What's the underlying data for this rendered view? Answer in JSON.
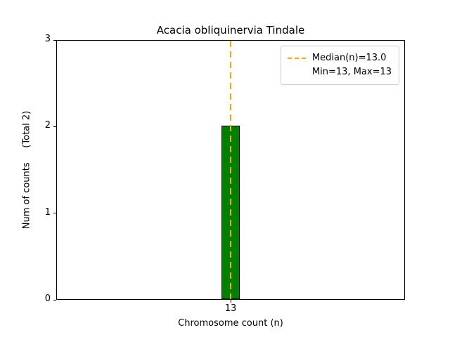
{
  "chart_data": {
    "type": "bar",
    "title": "Acacia obliquinervia Tindale",
    "xlabel": "Chromosome count (n)",
    "ylabel": "Num of counts     (Total 2)",
    "categories": [
      "13"
    ],
    "values": [
      2
    ],
    "ylim": [
      0,
      3
    ],
    "yticks": [
      0,
      1,
      2,
      3
    ],
    "grid": false,
    "bar_color": "#008000",
    "bar_edge_color": "#000000",
    "median_line": {
      "x": 13,
      "color": "#FFA500",
      "style": "dashed"
    },
    "legend": {
      "position": "upper right",
      "entries": [
        "Median(n)=13.0",
        "Min=13, Max=13"
      ]
    },
    "stats": {
      "total": 2,
      "median": 13.0,
      "min": 13,
      "max": 13
    }
  }
}
